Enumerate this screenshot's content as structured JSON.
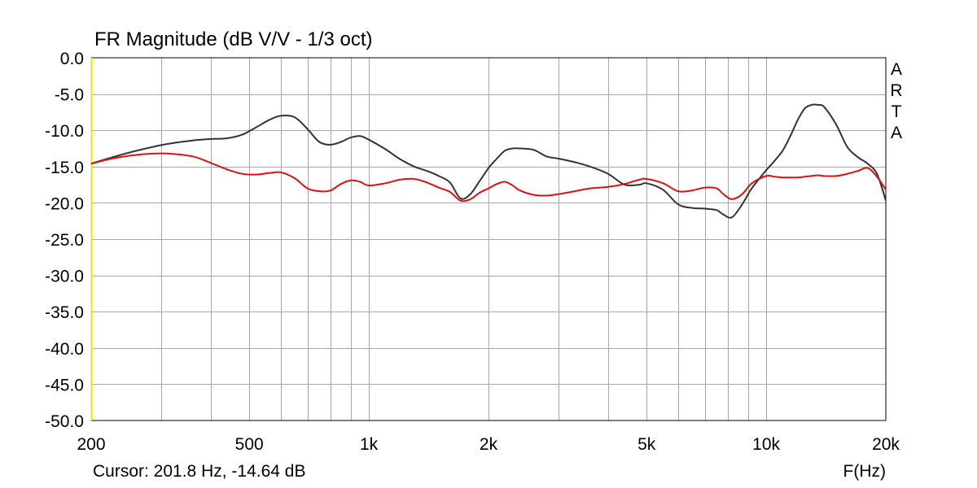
{
  "chart_data": {
    "type": "line",
    "title": "FR Magnitude (dB V/V - 1/3 oct)",
    "xlabel": "F(Hz)",
    "ylabel": "",
    "x_scale": "log",
    "xlim": [
      200,
      20000
    ],
    "ylim": [
      -50,
      0
    ],
    "grid": true,
    "x_ticks": [
      {
        "value": 200,
        "label": "200"
      },
      {
        "value": 500,
        "label": "500"
      },
      {
        "value": 1000,
        "label": "1k"
      },
      {
        "value": 2000,
        "label": "2k"
      },
      {
        "value": 5000,
        "label": "5k"
      },
      {
        "value": 10000,
        "label": "10k"
      },
      {
        "value": 20000,
        "label": "20k"
      }
    ],
    "y_ticks": [
      {
        "value": 0,
        "label": "0.0"
      },
      {
        "value": -5,
        "label": "-5.0"
      },
      {
        "value": -10,
        "label": "-10.0"
      },
      {
        "value": -15,
        "label": "-15.0"
      },
      {
        "value": -20,
        "label": "-20.0"
      },
      {
        "value": -25,
        "label": "-25.0"
      },
      {
        "value": -30,
        "label": "-30.0"
      },
      {
        "value": -35,
        "label": "-35.0"
      },
      {
        "value": -40,
        "label": "-40.0"
      },
      {
        "value": -45,
        "label": "-45.0"
      },
      {
        "value": -50,
        "label": "-50.0"
      }
    ],
    "series": [
      {
        "color": "#333333",
        "x": [
          200,
          230,
          270,
          310,
          360,
          400,
          440,
          480,
          520,
          560,
          600,
          650,
          700,
          750,
          800,
          850,
          900,
          950,
          1000,
          1100,
          1200,
          1300,
          1400,
          1500,
          1600,
          1700,
          1800,
          1900,
          2000,
          2100,
          2200,
          2300,
          2400,
          2600,
          2800,
          3000,
          3300,
          3600,
          4000,
          4400,
          4800,
          5000,
          5500,
          6000,
          6500,
          7000,
          7500,
          7800,
          8200,
          8700,
          9200,
          10000,
          10500,
          11000,
          11500,
          12000,
          12500,
          13000,
          13500,
          14000,
          15000,
          16000,
          17000,
          18000,
          19000,
          20000
        ],
        "values": [
          -14.6,
          -13.6,
          -12.6,
          -11.9,
          -11.4,
          -11.2,
          -11.1,
          -10.6,
          -9.6,
          -8.6,
          -8.0,
          -8.2,
          -9.8,
          -11.6,
          -12.0,
          -11.6,
          -11.0,
          -10.8,
          -11.3,
          -12.6,
          -14.0,
          -15.0,
          -15.6,
          -16.3,
          -17.2,
          -19.4,
          -18.8,
          -17.0,
          -15.2,
          -13.9,
          -12.8,
          -12.5,
          -12.5,
          -12.7,
          -13.6,
          -13.9,
          -14.4,
          -15.0,
          -16.0,
          -17.5,
          -17.5,
          -17.3,
          -18.2,
          -20.2,
          -20.7,
          -20.8,
          -21.0,
          -21.6,
          -22.0,
          -20.2,
          -18.0,
          -15.5,
          -14.2,
          -12.8,
          -10.8,
          -8.6,
          -7.0,
          -6.5,
          -6.5,
          -6.8,
          -9.2,
          -12.3,
          -13.7,
          -14.6,
          -16.0,
          -19.7
        ]
      },
      {
        "color": "#e01010",
        "x": [
          200,
          230,
          270,
          310,
          360,
          400,
          440,
          480,
          520,
          560,
          600,
          650,
          700,
          750,
          800,
          850,
          900,
          950,
          1000,
          1100,
          1200,
          1300,
          1400,
          1500,
          1600,
          1700,
          1800,
          1900,
          2000,
          2100,
          2200,
          2300,
          2400,
          2600,
          2800,
          3000,
          3300,
          3600,
          4000,
          4400,
          4800,
          5000,
          5500,
          6000,
          6500,
          7000,
          7500,
          7800,
          8200,
          8700,
          9200,
          10000,
          10500,
          11000,
          11500,
          12000,
          12500,
          13000,
          13500,
          14000,
          15000,
          16000,
          17000,
          18000,
          19000,
          20000
        ],
        "values": [
          -14.6,
          -13.8,
          -13.3,
          -13.2,
          -13.6,
          -14.5,
          -15.4,
          -16.0,
          -16.1,
          -15.9,
          -15.8,
          -16.6,
          -18.0,
          -18.4,
          -18.3,
          -17.4,
          -16.9,
          -17.1,
          -17.6,
          -17.3,
          -16.8,
          -16.7,
          -17.2,
          -17.9,
          -18.5,
          -19.7,
          -19.5,
          -18.6,
          -18.0,
          -17.4,
          -17.1,
          -17.6,
          -18.3,
          -18.9,
          -19.0,
          -18.8,
          -18.4,
          -18.0,
          -17.8,
          -17.4,
          -16.8,
          -16.7,
          -17.3,
          -18.4,
          -18.3,
          -17.9,
          -18.0,
          -18.8,
          -19.5,
          -18.8,
          -17.3,
          -16.3,
          -16.4,
          -16.5,
          -16.5,
          -16.5,
          -16.4,
          -16.3,
          -16.2,
          -16.3,
          -16.3,
          -16.0,
          -15.6,
          -15.2,
          -16.4,
          -18.2
        ]
      }
    ]
  },
  "brand_letters": [
    "A",
    "R",
    "T",
    "A"
  ],
  "status": {
    "cursor": "Cursor: 201.8 Hz, -14.64 dB"
  }
}
